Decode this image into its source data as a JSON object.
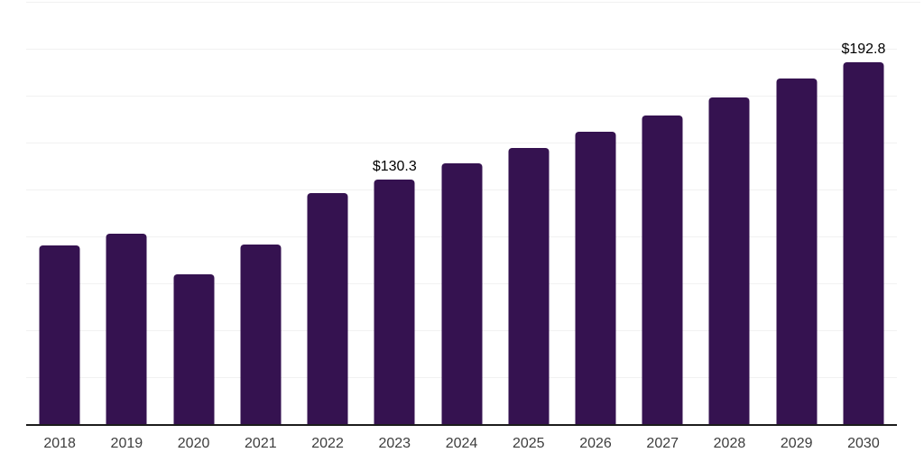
{
  "chart_data": {
    "type": "bar",
    "title": "",
    "xlabel": "",
    "ylabel": "",
    "categories": [
      "2018",
      "2019",
      "2020",
      "2021",
      "2022",
      "2023",
      "2024",
      "2025",
      "2026",
      "2027",
      "2028",
      "2029",
      "2030"
    ],
    "values": [
      95.2,
      101.5,
      79.8,
      95.7,
      123.1,
      130.3,
      138.9,
      147.2,
      155.8,
      164.6,
      174.0,
      183.9,
      192.8
    ],
    "data_labels": [
      {
        "category": "2023",
        "text": "$130.3"
      },
      {
        "category": "2030",
        "text": "$192.8"
      }
    ],
    "ylim": [
      0,
      225
    ],
    "gridline_step": 25,
    "grid": true,
    "legend": "none",
    "colors": {
      "bar": "#351250",
      "gridline": "#f1f1f1",
      "axis_line": "#1c1c1c",
      "tick_label": "#3d3d3d",
      "data_label": "#000000",
      "background": "#ffffff"
    }
  }
}
